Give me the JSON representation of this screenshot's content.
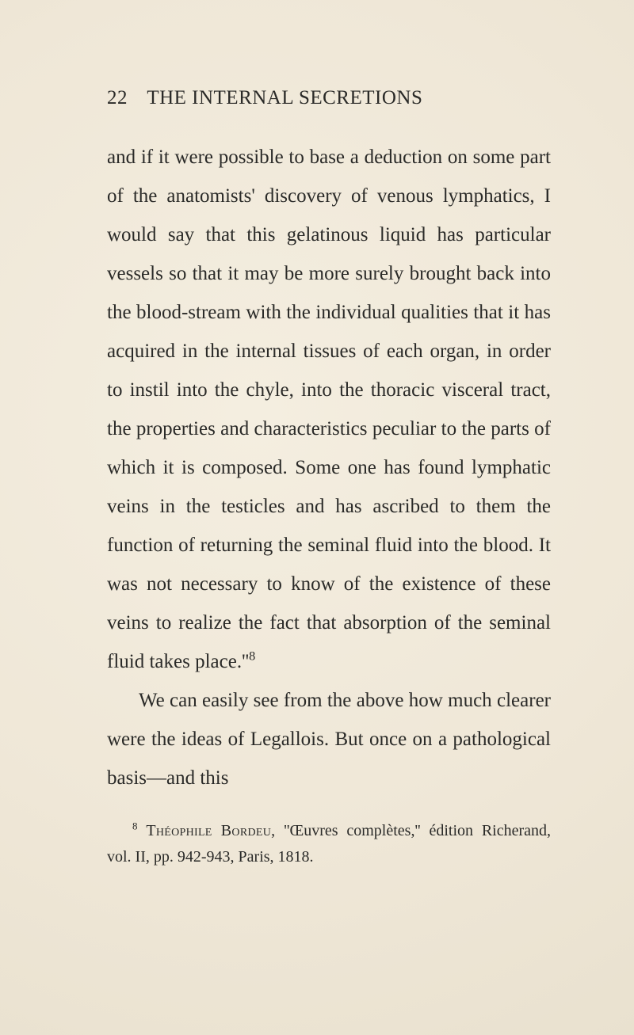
{
  "page": {
    "background_color": "#f0e9da",
    "text_color": "#2a2a28",
    "font_family": "Times New Roman",
    "body_fontsize_pt": 19,
    "footnote_fontsize_pt": 15,
    "line_height": 1.96
  },
  "header": {
    "page_number": "22",
    "running_title": "THE INTERNAL SECRETIONS"
  },
  "body": {
    "para1": "and if it were possible to base a deduction on some part of the anatomists' discovery of venous lymphatics, I would say that this gelatinous liquid has particular vessels so that it may be more surely brought back into the blood-stream with the individual qualities that it has acquired in the inter­nal tissues of each organ, in order to instil into the chyle, into the thoracic visceral tract, the properties and characteristics pe­culiar to the parts of which it is composed. Some one has found lymphatic veins in the testicles and has ascribed to them the function of returning the seminal fluid into the blood. It was not necessary to know of the existence of these veins to realize the fact that absorption of the seminal fluid takes place.''",
    "para1_note_marker": "8",
    "para2": "We can easily see from the above how much clearer were the ideas of Legallois. But once on a pathological basis—and this"
  },
  "footnote": {
    "marker": "8",
    "author": "Théophile Bordeu,",
    "rest": " ''Œuvres complètes,'' édition Richerand, vol. II, pp. 942-943, Paris, 1818."
  }
}
